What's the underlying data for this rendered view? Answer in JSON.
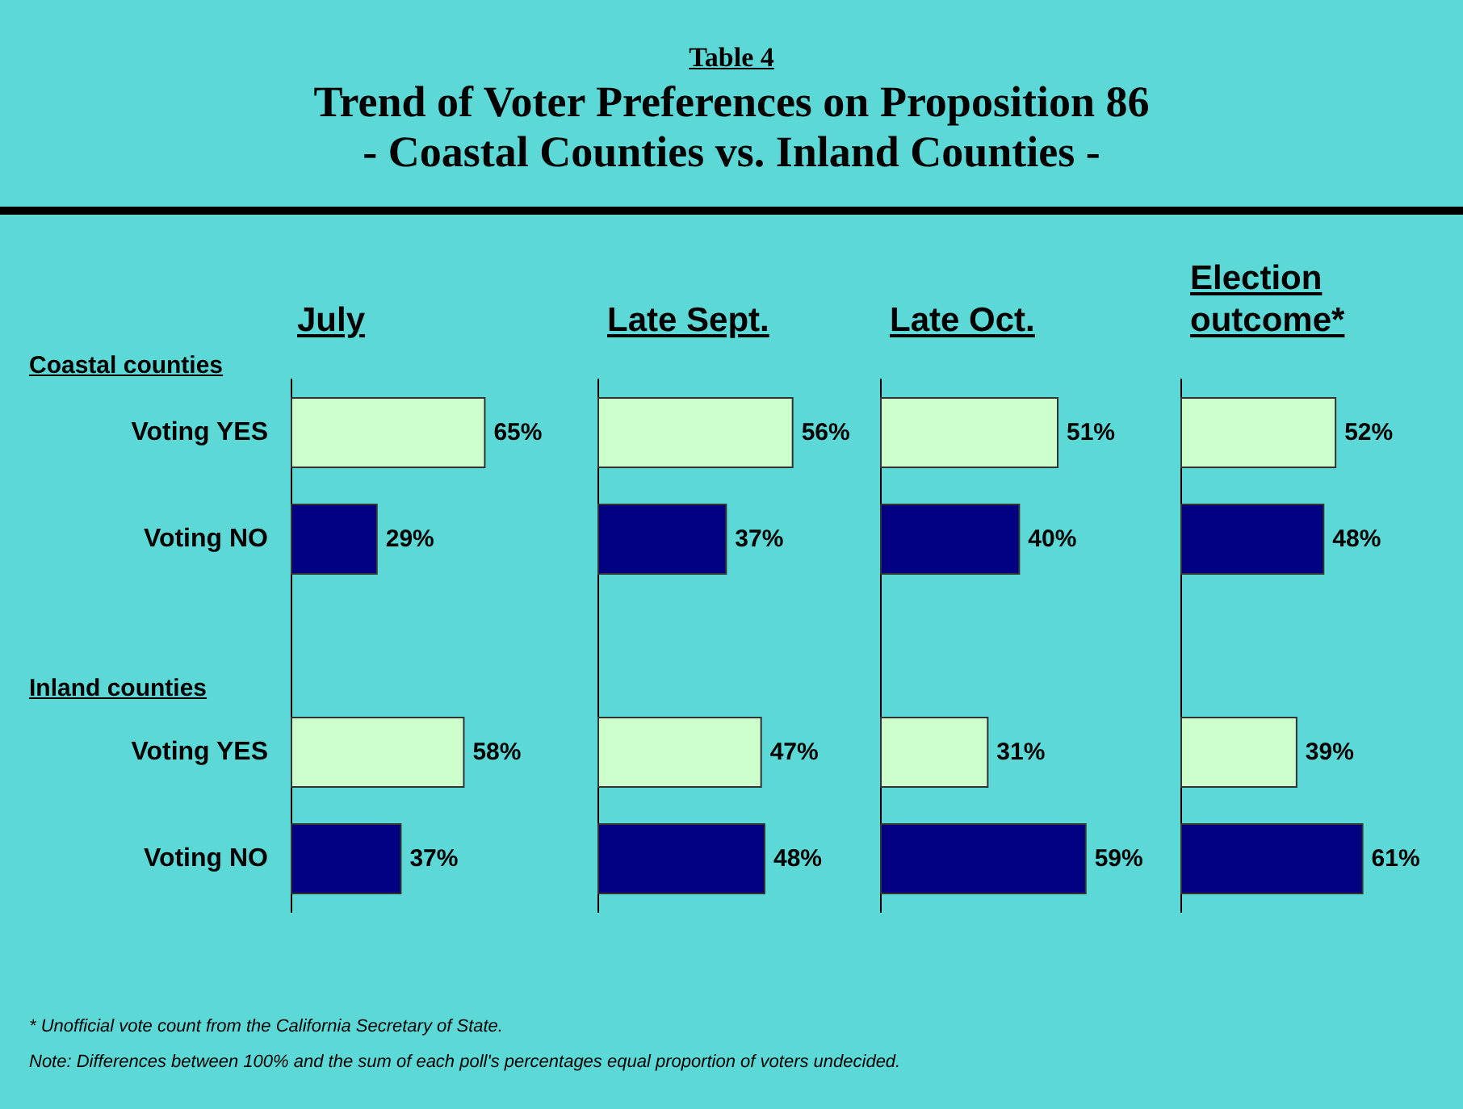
{
  "chart_data": [
    {
      "type": "bar",
      "orientation": "horizontal",
      "title": "Trend of Voter Preferences on Proposition 86",
      "subtitle": "- Coastal Counties vs. Inland Counties -",
      "xlabel": "July",
      "categories": [
        "Voting YES",
        "Voting NO",
        null,
        "Voting YES",
        "Voting NO"
      ],
      "values": [
        65,
        29,
        null,
        58,
        37
      ],
      "value_labels": [
        "65%",
        "29%",
        null,
        "58%",
        "37%"
      ],
      "colors": [
        "#ccffcc",
        "#000080",
        null,
        "#ccffcc",
        "#000080"
      ],
      "tick_labels": "y",
      "annotations": [
        "Table 4",
        "Coastal counties",
        "Inland counties",
        "* Unofficial vote count from the California Secretary of State.",
        "Note: Differences between 100% and the sum of each poll's percentages equal proportion of voters undecided."
      ]
    },
    {
      "type": "bar",
      "orientation": "horizontal",
      "xlabel": "Late Sept.",
      "categories": [
        null,
        null,
        null,
        null,
        null
      ],
      "values": [
        56,
        37,
        null,
        47,
        48
      ],
      "value_labels": [
        "56%",
        "37%",
        null,
        "47%",
        "48%"
      ],
      "colors": [
        "#ccffcc",
        "#000080",
        null,
        "#ccffcc",
        "#000080"
      ],
      "tick_labels": false
    },
    {
      "type": "bar",
      "orientation": "horizontal",
      "xlabel": "Late Oct.",
      "categories": [
        null,
        null,
        null,
        null,
        null
      ],
      "values": [
        51,
        40,
        null,
        31,
        59
      ],
      "value_labels": [
        "51%",
        "40%",
        null,
        "31%",
        "59%"
      ],
      "colors": [
        "#ccffcc",
        "#000080",
        null,
        "#ccffcc",
        "#000080"
      ],
      "tick_labels": false
    },
    {
      "type": "bar",
      "orientation": "horizontal",
      "xlabel": "Election outcome*",
      "categories": [
        null,
        null,
        null,
        null,
        null
      ],
      "values": [
        52,
        48,
        null,
        39,
        61
      ],
      "value_labels": [
        "52%",
        "48%",
        null,
        "39%",
        "61%"
      ],
      "colors": [
        "#ccffcc",
        "#000080",
        null,
        "#ccffcc",
        "#000080"
      ],
      "tick_labels": false
    }
  ]
}
